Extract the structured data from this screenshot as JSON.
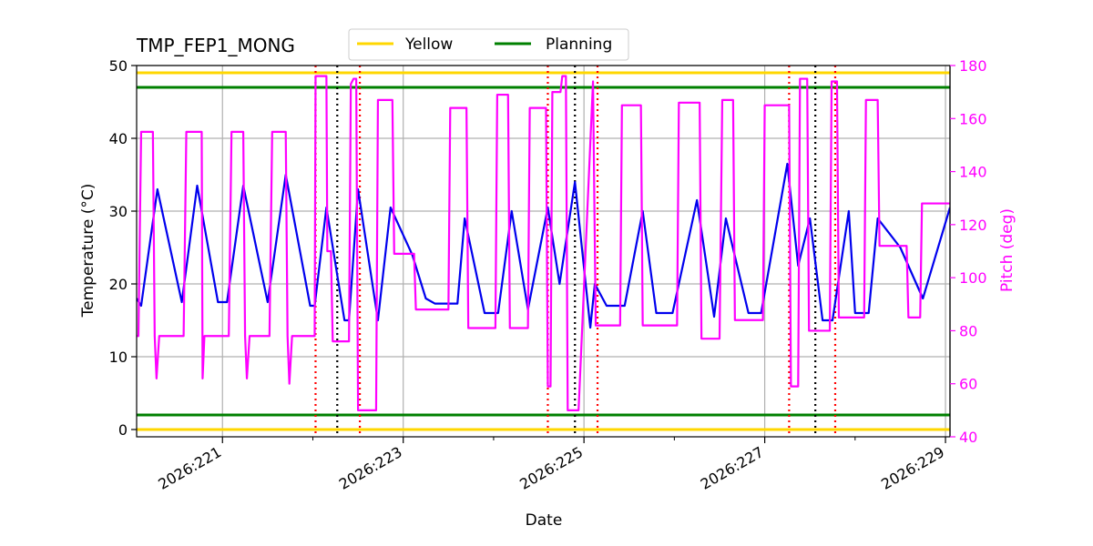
{
  "chart_data": {
    "type": "line",
    "title": "TMP_FEP1_MONG",
    "xlabel": "Date",
    "ylabel": "Temperature ($^\\circ$C)",
    "ylabel_display": "Temperature (°C)",
    "y2label": "Pitch (deg)",
    "xlim": [
      220.05,
      229.05
    ],
    "ylim": [
      -1,
      50
    ],
    "y2lim": [
      40,
      180
    ],
    "x_ticks": [
      221,
      223,
      225,
      227,
      229
    ],
    "x_tick_labels": [
      "2026:221",
      "2026:223",
      "2026:225",
      "2026:227",
      "2026:229"
    ],
    "y_ticks": [
      0,
      10,
      20,
      30,
      40,
      50
    ],
    "y2_ticks": [
      40,
      60,
      80,
      100,
      120,
      140,
      160,
      180
    ],
    "grid": true,
    "legend": {
      "placement": "top-center",
      "entries": [
        {
          "name": "Yellow",
          "color": "#ffd700"
        },
        {
          "name": "Planning",
          "color": "#008000"
        }
      ]
    },
    "limit_lines": [
      {
        "name": "Yellow",
        "y": 49,
        "color": "#ffd700"
      },
      {
        "name": "Yellow",
        "y": 0,
        "color": "#ffd700"
      },
      {
        "name": "Planning",
        "y": 47,
        "color": "#008000"
      },
      {
        "name": "Planning",
        "y": 2,
        "color": "#008000"
      }
    ],
    "vertical_markers": [
      {
        "x": 222.03,
        "color": "#ff0000",
        "style": "dotted"
      },
      {
        "x": 222.27,
        "color": "#000000",
        "style": "dotted"
      },
      {
        "x": 222.52,
        "color": "#ff0000",
        "style": "dotted"
      },
      {
        "x": 224.6,
        "color": "#ff0000",
        "style": "dotted"
      },
      {
        "x": 224.9,
        "color": "#000000",
        "style": "dotted"
      },
      {
        "x": 225.15,
        "color": "#ff0000",
        "style": "dotted"
      },
      {
        "x": 227.27,
        "color": "#ff0000",
        "style": "dotted"
      },
      {
        "x": 227.56,
        "color": "#000000",
        "style": "dotted"
      },
      {
        "x": 227.78,
        "color": "#ff0000",
        "style": "dotted"
      }
    ],
    "series": [
      {
        "name": "",
        "axis": "left",
        "color": "#0000ee",
        "x": [
          220.05,
          220.1,
          220.28,
          220.55,
          220.72,
          220.95,
          221.05,
          221.23,
          221.5,
          221.7,
          221.97,
          222.02,
          222.15,
          222.35,
          222.4,
          222.5,
          222.72,
          222.86,
          223.1,
          223.25,
          223.35,
          223.6,
          223.68,
          223.9,
          224.05,
          224.2,
          224.38,
          224.6,
          224.73,
          224.9,
          225.07,
          225.12,
          225.25,
          225.45,
          225.65,
          225.8,
          225.98,
          226.25,
          226.44,
          226.57,
          226.82,
          226.96,
          227.25,
          227.37,
          227.5,
          227.64,
          227.75,
          227.93,
          228.0,
          228.15,
          228.25,
          228.5,
          228.75,
          229.05
        ],
        "y": [
          18,
          17,
          33,
          17.5,
          33.5,
          17.5,
          17.5,
          33.5,
          17.5,
          35,
          17,
          17,
          30.5,
          15,
          15,
          33,
          15,
          30.5,
          24,
          18,
          17.3,
          17.3,
          29,
          16,
          16,
          30,
          16.5,
          30.5,
          20,
          34,
          14,
          20,
          17,
          17,
          30,
          16,
          16,
          31.5,
          15.5,
          29,
          16,
          16,
          36.5,
          22.5,
          29,
          15,
          15,
          30,
          16,
          16,
          29,
          25,
          18,
          30.5
        ]
      },
      {
        "name": "",
        "axis": "right",
        "color": "#ff00ff",
        "x": [
          220.05,
          220.07,
          220.1,
          220.17,
          220.23,
          220.25,
          220.27,
          220.3,
          220.57,
          220.6,
          220.77,
          220.78,
          220.8,
          221.07,
          221.1,
          221.2,
          221.23,
          221.25,
          221.27,
          221.3,
          221.52,
          221.55,
          221.7,
          221.72,
          221.74,
          221.77,
          222.0,
          222.02,
          222.03,
          222.15,
          222.16,
          222.2,
          222.22,
          222.4,
          222.42,
          222.45,
          222.48,
          222.5,
          222.52,
          222.7,
          222.72,
          222.88,
          222.9,
          223.12,
          223.14,
          223.5,
          223.52,
          223.7,
          223.72,
          224.02,
          224.04,
          224.16,
          224.18,
          224.38,
          224.4,
          224.58,
          224.6,
          224.63,
          224.65,
          224.74,
          224.76,
          224.8,
          224.82,
          224.92,
          224.94,
          225.1,
          225.13,
          225.4,
          225.42,
          225.63,
          225.65,
          226.03,
          226.05,
          226.28,
          226.3,
          226.5,
          226.53,
          226.65,
          226.67,
          226.98,
          227.0,
          227.05,
          227.07,
          227.27,
          227.29,
          227.37,
          227.39,
          227.47,
          227.49,
          227.72,
          227.74,
          227.8,
          227.82,
          228.1,
          228.12,
          228.25,
          228.27,
          228.57,
          228.59,
          228.72,
          228.74,
          229.05
        ],
        "y": [
          78,
          78,
          155,
          155,
          155,
          78,
          62,
          78,
          78,
          155,
          155,
          62,
          78,
          78,
          155,
          155,
          155,
          78,
          62,
          78,
          78,
          155,
          155,
          78,
          60,
          78,
          78,
          78,
          176,
          176,
          110,
          110,
          76,
          76,
          173,
          175,
          175,
          50,
          50,
          50,
          167,
          167,
          109,
          109,
          88,
          88,
          164,
          164,
          81,
          81,
          169,
          169,
          81,
          81,
          164,
          164,
          59,
          59,
          170,
          170,
          176,
          176,
          50,
          50,
          50,
          174,
          82,
          82,
          165,
          165,
          82,
          82,
          166,
          166,
          77,
          77,
          167,
          167,
          84,
          84,
          165,
          165,
          165,
          165,
          59,
          59,
          175,
          175,
          80,
          80,
          174,
          174,
          85,
          85,
          167,
          167,
          112,
          112,
          85,
          85,
          128,
          128
        ]
      }
    ]
  }
}
